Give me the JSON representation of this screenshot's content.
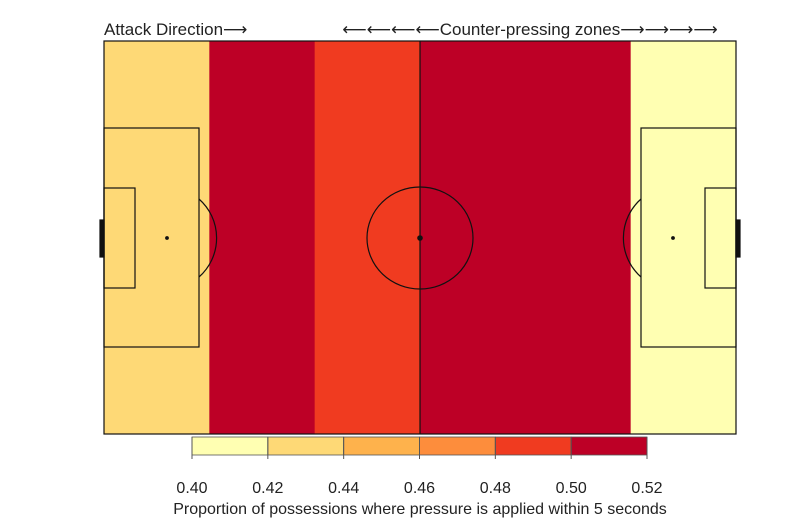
{
  "chart_data": {
    "type": "heatmap",
    "top_left_annotation": "Attack Direction⟶",
    "top_right_annotation": "⟵⟵⟵⟵Counter-pressing zones⟶⟶⟶⟶",
    "zones": [
      {
        "zone": 1,
        "value": 0.42,
        "color": "#FED976"
      },
      {
        "zone": 2,
        "value": 0.51,
        "color": "#BD0026"
      },
      {
        "zone": 3,
        "value": 0.49,
        "color": "#F03B20"
      },
      {
        "zone": 4,
        "value": 0.51,
        "color": "#BD0026"
      },
      {
        "zone": 5,
        "value": 0.51,
        "color": "#BD0026"
      },
      {
        "zone": 6,
        "value": 0.4,
        "color": "#FFFFB2"
      }
    ],
    "colorbar": {
      "label": "Proportion of possessions where pressure is applied within 5 seconds",
      "range": [
        0.4,
        0.52
      ],
      "ticks": [
        "0.40",
        "0.42",
        "0.44",
        "0.46",
        "0.48",
        "0.50",
        "0.52"
      ],
      "colors": [
        "#FFFFB2",
        "#FED976",
        "#FEB24C",
        "#FD8D3C",
        "#F03B20",
        "#BD0026"
      ]
    }
  }
}
